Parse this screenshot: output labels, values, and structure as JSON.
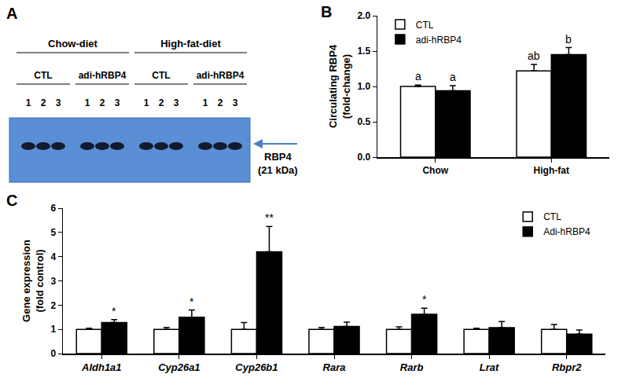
{
  "blot": {
    "panel": "A",
    "groups": [
      {
        "label": "Chow-diet",
        "subgroups": [
          {
            "label": "CTL",
            "lanes": [
              "1",
              "2",
              "3"
            ]
          },
          {
            "label": "adi-hRBP4",
            "lanes": [
              "1",
              "2",
              "3"
            ]
          }
        ]
      },
      {
        "label": "High-fat-diet",
        "subgroups": [
          {
            "label": "CTL",
            "lanes": [
              "1",
              "2",
              "3"
            ]
          },
          {
            "label": "adi-hRBP4",
            "lanes": [
              "1",
              "2",
              "3"
            ]
          }
        ]
      }
    ],
    "band_label": "RBP4",
    "band_size": "(21 kDa)"
  },
  "chart_data": [
    {
      "panel": "B",
      "type": "bar",
      "categories": [
        "Chow",
        "High-fat"
      ],
      "y_label": "Circulating RBP4\n(fold-change)",
      "ylim": [
        0,
        2
      ],
      "yticks": [
        {
          "value": 0,
          "label": "0.0"
        },
        {
          "value": 0.5,
          "label": "0.5"
        },
        {
          "value": 1,
          "label": "1.0"
        },
        {
          "value": 1.5,
          "label": "1.5"
        },
        {
          "value": 2,
          "label": "2.0"
        }
      ],
      "legend": "upper left",
      "series": [
        {
          "name": "CTL",
          "color": "#ffffff",
          "values": [
            1.0,
            1.22
          ],
          "errors": [
            0.02,
            0.09
          ],
          "annotations": [
            "a",
            "ab"
          ]
        },
        {
          "name": "adi-hRBP4",
          "color": "#000000",
          "values": [
            0.94,
            1.45
          ],
          "errors": [
            0.07,
            0.1
          ],
          "annotations": [
            "a",
            "b"
          ]
        }
      ]
    },
    {
      "panel": "C",
      "type": "bar",
      "categories": [
        "Aldh1a1",
        "Cyp26a1",
        "Cyp26b1",
        "Rara",
        "Rarb",
        "Lrat",
        "Rbpr2"
      ],
      "y_label": "Gene expression\n(fold control)",
      "ylim": [
        0,
        6
      ],
      "yticks": [
        0,
        1,
        2,
        3,
        4,
        5,
        6
      ],
      "legend": "upper right",
      "series": [
        {
          "name": "CTL",
          "color": "#ffffff",
          "values": [
            1.0,
            1.0,
            1.0,
            1.0,
            1.0,
            1.0,
            1.0
          ],
          "errors": [
            0.05,
            0.08,
            0.28,
            0.08,
            0.1,
            0.05,
            0.2
          ]
        },
        {
          "name": "Adi-hRBP4",
          "color": "#000000",
          "values": [
            1.28,
            1.5,
            4.2,
            1.12,
            1.62,
            1.07,
            0.8
          ],
          "errors": [
            0.12,
            0.3,
            1.05,
            0.18,
            0.25,
            0.25,
            0.17
          ],
          "annotations": [
            "*",
            "*",
            "**",
            null,
            "*",
            null,
            null
          ]
        }
      ]
    }
  ]
}
